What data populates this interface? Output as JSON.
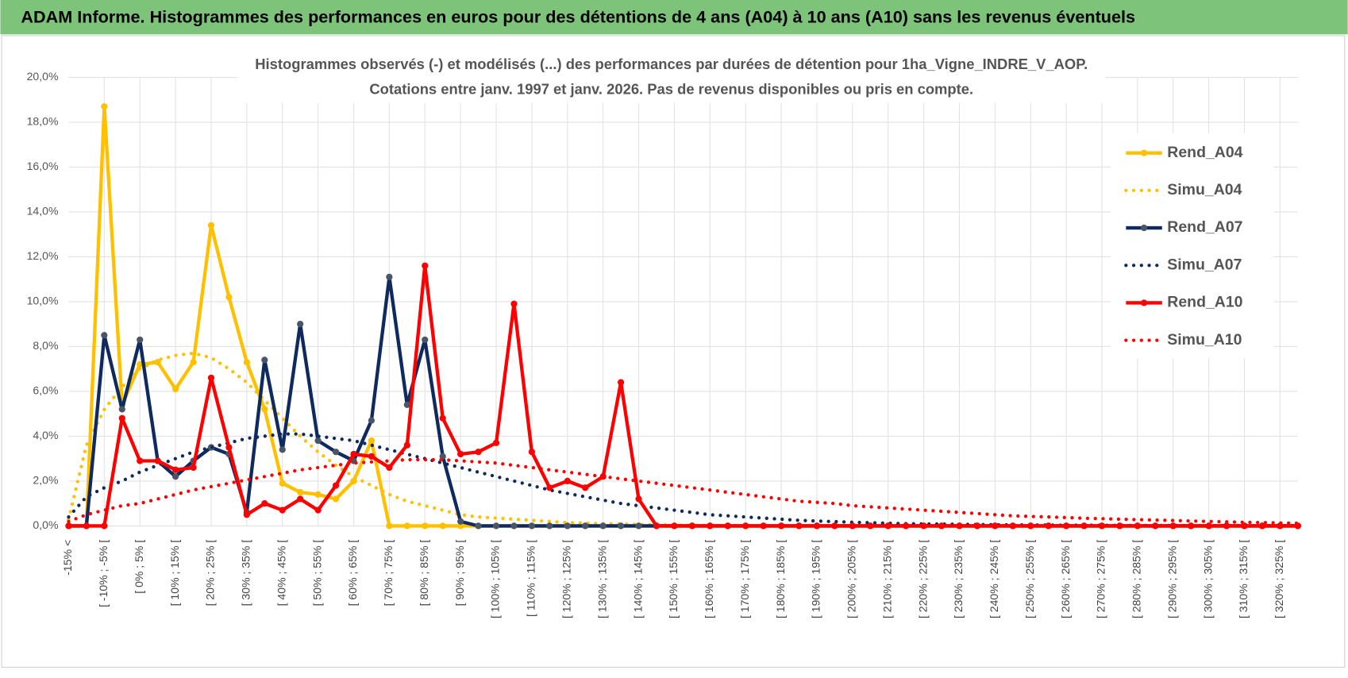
{
  "header": {
    "title": "ADAM Informe. Histogrammes des performances en euros pour des détentions de 4 ans (A04) à 10 ans (A10) sans les revenus éventuels"
  },
  "chart_data": {
    "type": "line",
    "title": "Histogrammes observés (-) et modélisés (...) des performances par durées de détention pour 1ha_Vigne_INDRE_V_AOP.",
    "subtitle": "Cotations entre janv. 1997 et janv. 2026. Pas de revenus disponibles ou pris en compte.",
    "categories": [
      "-15% <",
      null,
      "[ -10% ; -5% [",
      null,
      "[ 0% ; 5% [",
      null,
      "[ 10% ; 15% [",
      null,
      "[ 20% ; 25% [",
      null,
      "[ 30% ; 35% [",
      null,
      "[ 40% ; 45% [",
      null,
      "[ 50% ; 55% [",
      null,
      "[ 60% ; 65% [",
      null,
      "[ 70% ; 75% [",
      null,
      "[ 80% ; 85% [",
      null,
      "[ 90% ; 95% [",
      null,
      "[ 100% ; 105% [",
      null,
      "[ 110% ; 115% [",
      null,
      "[ 120% ; 125% [",
      null,
      "[ 130% ; 135% [",
      null,
      "[ 140% ; 145% [",
      null,
      "[ 150% ; 155% [",
      null,
      "[ 160% ; 165% [",
      null,
      "[ 170% ; 175% [",
      null,
      "[ 180% ; 185% [",
      null,
      "[ 190% ; 195% [",
      null,
      "[ 200% ; 205% [",
      null,
      "[ 210% ; 215% [",
      null,
      "[ 220% ; 225% [",
      null,
      "[ 230% ; 235% [",
      null,
      "[ 240% ; 245% [",
      null,
      "[ 250% ; 255% [",
      null,
      "[ 260% ; 265% [",
      null,
      "[ 270% ; 275% [",
      null,
      "[ 280% ; 285% [",
      null,
      "[ 290% ; 295% [",
      null,
      "[ 300% ; 305% [",
      null,
      "[ 310% ; 315% [",
      null,
      "[ 320% ; 325% [",
      null
    ],
    "series": [
      {
        "name": "Rend_A04",
        "color": "#ffc000",
        "marker_color": "#ffc000",
        "style": "solid",
        "markers": true,
        "values": [
          0,
          0,
          18.7,
          5.4,
          7.2,
          7.3,
          6.1,
          7.3,
          13.4,
          10.2,
          7.3,
          5.2,
          1.9,
          1.5,
          1.4,
          1.2,
          2.0,
          3.8,
          0,
          0,
          0,
          0,
          0,
          0,
          0,
          0,
          0,
          0,
          0,
          0,
          0,
          0,
          0,
          0,
          0,
          0,
          0,
          0,
          0,
          0,
          0,
          0,
          0,
          0,
          0,
          0,
          0,
          0,
          0,
          0,
          0,
          0,
          0,
          0,
          0,
          0,
          0,
          0,
          0,
          0,
          0,
          0,
          0,
          0,
          0,
          0,
          0,
          0,
          0,
          0
        ]
      },
      {
        "name": "Simu_A04",
        "color": "#ffc000",
        "style": "dotted",
        "markers": false,
        "values": [
          0.3,
          3.6,
          5.2,
          6.2,
          7.0,
          7.4,
          7.6,
          7.7,
          7.5,
          7.0,
          6.4,
          5.6,
          4.8,
          4.0,
          3.3,
          2.7,
          2.2,
          1.8,
          1.4,
          1.1,
          0.9,
          0.7,
          0.5,
          0.4,
          0.35,
          0.3,
          0.25,
          0.2,
          0.15,
          0.12,
          0.1,
          0.08,
          0.06,
          0.05,
          0.04,
          0.03,
          0.02,
          0.02,
          0.01,
          0.01,
          0,
          0,
          0,
          0,
          0,
          0,
          0,
          0,
          0,
          0,
          0,
          0,
          0,
          0,
          0,
          0,
          0,
          0,
          0,
          0,
          0,
          0,
          0,
          0,
          0,
          0,
          0,
          0,
          0,
          0
        ]
      },
      {
        "name": "Rend_A07",
        "color": "#0e2a5e",
        "marker_color": "#4a5568",
        "style": "solid",
        "markers": true,
        "values": [
          0,
          0,
          8.5,
          5.2,
          8.3,
          2.9,
          2.2,
          2.9,
          3.5,
          3.2,
          0.6,
          7.4,
          3.4,
          9.0,
          3.8,
          3.3,
          2.9,
          4.7,
          11.1,
          5.4,
          8.3,
          3.1,
          0.2,
          0,
          0,
          0,
          0,
          0,
          0,
          0,
          0,
          0,
          0,
          0,
          0,
          0,
          0,
          0,
          0,
          0,
          0,
          0,
          0,
          0,
          0,
          0,
          0,
          0,
          0,
          0,
          0,
          0,
          0,
          0,
          0,
          0,
          0,
          0,
          0,
          0,
          0,
          0,
          0,
          0,
          0,
          0,
          0,
          0,
          0,
          0
        ]
      },
      {
        "name": "Simu_A07",
        "color": "#0e2a5e",
        "style": "dotted",
        "markers": false,
        "values": [
          0.4,
          1.3,
          1.7,
          2.0,
          2.4,
          2.7,
          3.0,
          3.3,
          3.5,
          3.7,
          3.9,
          4.0,
          4.1,
          4.1,
          4.0,
          3.9,
          3.8,
          3.6,
          3.4,
          3.2,
          3.0,
          2.8,
          2.6,
          2.4,
          2.2,
          2.0,
          1.8,
          1.6,
          1.45,
          1.3,
          1.15,
          1.0,
          0.9,
          0.8,
          0.7,
          0.6,
          0.5,
          0.45,
          0.4,
          0.35,
          0.3,
          0.25,
          0.22,
          0.19,
          0.16,
          0.14,
          0.12,
          0.1,
          0.09,
          0.08,
          0.07,
          0.06,
          0.05,
          0.05,
          0.04,
          0.04,
          0.03,
          0.03,
          0.03,
          0.02,
          0.02,
          0.02,
          0.02,
          0.01,
          0.01,
          0.01,
          0.01,
          0.01,
          0.01,
          0.01
        ]
      },
      {
        "name": "Rend_A10",
        "color": "#ff0000",
        "marker_color": "#ff0000",
        "style": "solid",
        "markers": true,
        "values": [
          0,
          0,
          0,
          4.8,
          2.9,
          2.9,
          2.5,
          2.6,
          6.6,
          3.5,
          0.5,
          1.0,
          0.7,
          1.2,
          0.7,
          1.8,
          3.2,
          3.1,
          2.6,
          3.6,
          11.6,
          4.8,
          3.2,
          3.3,
          3.7,
          9.9,
          3.3,
          1.7,
          2.0,
          1.7,
          2.2,
          6.4,
          1.2,
          0,
          0,
          0,
          0,
          0,
          0,
          0,
          0,
          0,
          0,
          0,
          0,
          0,
          0,
          0,
          0,
          0,
          0,
          0,
          0,
          0,
          0,
          0,
          0,
          0,
          0,
          0,
          0,
          0,
          0,
          0,
          0,
          0,
          0,
          0,
          0,
          0
        ]
      },
      {
        "name": "Simu_A10",
        "color": "#ff0000",
        "style": "dotted",
        "markers": false,
        "values": [
          0.2,
          0.5,
          0.7,
          0.9,
          1.0,
          1.2,
          1.4,
          1.6,
          1.75,
          1.9,
          2.05,
          2.2,
          2.35,
          2.5,
          2.6,
          2.7,
          2.8,
          2.85,
          2.9,
          2.95,
          2.95,
          2.95,
          2.9,
          2.85,
          2.8,
          2.7,
          2.6,
          2.5,
          2.4,
          2.3,
          2.2,
          2.1,
          2.0,
          1.9,
          1.8,
          1.7,
          1.6,
          1.5,
          1.4,
          1.3,
          1.2,
          1.1,
          1.05,
          1.0,
          0.9,
          0.85,
          0.8,
          0.75,
          0.7,
          0.65,
          0.6,
          0.55,
          0.5,
          0.45,
          0.42,
          0.4,
          0.37,
          0.34,
          0.32,
          0.3,
          0.28,
          0.26,
          0.24,
          0.22,
          0.2,
          0.18,
          0.16,
          0.15,
          0.13,
          0.12
        ]
      }
    ],
    "ylim": [
      0,
      20
    ],
    "yticks": [
      {
        "value": 0,
        "label": "0,0%"
      },
      {
        "value": 2,
        "label": "2,0%"
      },
      {
        "value": 4,
        "label": "4,0%"
      },
      {
        "value": 6,
        "label": "6,0%"
      },
      {
        "value": 8,
        "label": "8,0%"
      },
      {
        "value": 10,
        "label": "10,0%"
      },
      {
        "value": 12,
        "label": "12,0%"
      },
      {
        "value": 14,
        "label": "14,0%"
      },
      {
        "value": 16,
        "label": "16,0%"
      },
      {
        "value": 18,
        "label": "18,0%"
      },
      {
        "value": 20,
        "label": "20,0%"
      }
    ],
    "grid": true,
    "legend": "right"
  }
}
